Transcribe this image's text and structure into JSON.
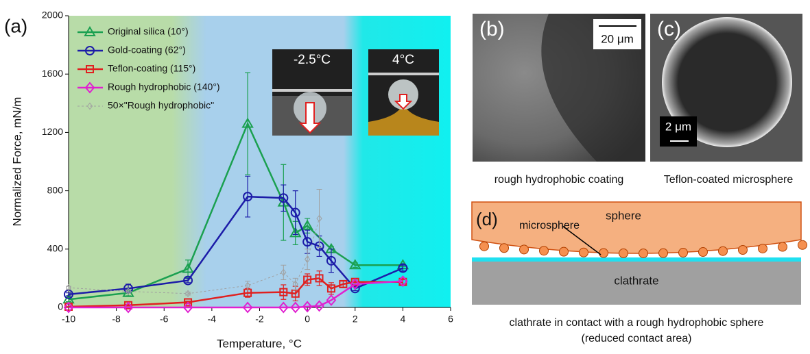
{
  "chart_data": {
    "type": "line",
    "panel_label": "(a)",
    "x_label": "Temperature, °C",
    "y_label": "Normalized Force, mN/m",
    "xlim": [
      -10,
      6
    ],
    "xticks": [
      -10,
      -8,
      -6,
      -4,
      -2,
      0,
      2,
      4,
      6
    ],
    "ylim": [
      0,
      2000
    ],
    "yticks": [
      0,
      400,
      800,
      1200,
      1600,
      2000
    ],
    "series": [
      {
        "name": "Original silica (10°)",
        "color": "#1aa050",
        "marker": "triangle",
        "x": [
          -10,
          -7.5,
          -5,
          -2.5,
          -1,
          -0.5,
          0,
          1,
          2,
          4
        ],
        "values": [
          55,
          100,
          265,
          1260,
          720,
          510,
          560,
          400,
          290,
          290
        ],
        "errors": [
          15,
          20,
          60,
          350,
          260,
          80,
          50,
          20,
          15,
          10
        ]
      },
      {
        "name": "Gold-coating (62°)",
        "color": "#1c1ca8",
        "marker": "circle",
        "x": [
          -10,
          -7.5,
          -5,
          -2.5,
          -1,
          -0.5,
          0,
          0.5,
          1,
          2,
          4
        ],
        "values": [
          90,
          130,
          185,
          760,
          750,
          650,
          450,
          420,
          320,
          130,
          270
        ],
        "errors": [
          10,
          30,
          15,
          140,
          90,
          150,
          80,
          70,
          80,
          15,
          20
        ]
      },
      {
        "name": "Teflon-coating (115°)",
        "color": "#e02020",
        "marker": "square",
        "x": [
          -10,
          -7.5,
          -5,
          -2.5,
          -1,
          -0.5,
          0,
          0.5,
          1,
          1.5,
          2,
          4
        ],
        "values": [
          5,
          15,
          35,
          100,
          105,
          95,
          190,
          200,
          130,
          160,
          175,
          175
        ],
        "errors": [
          3,
          5,
          8,
          30,
          50,
          50,
          40,
          50,
          40,
          20,
          20,
          15
        ]
      },
      {
        "name": "Rough hydrophobic (140°)",
        "color": "#e020d0",
        "marker": "diamond",
        "x": [
          -10,
          -7.5,
          -5,
          -2.5,
          -1,
          -0.5,
          0,
          0.5,
          1,
          2,
          4
        ],
        "values": [
          0,
          0,
          0,
          0,
          0,
          0,
          5,
          10,
          50,
          160,
          180
        ]
      },
      {
        "name": "50×\"Rough hydrophobic\"",
        "color": "#a0a0a0",
        "marker": "diamond-dash",
        "x": [
          -10,
          -7.5,
          -5,
          -2.5,
          -1,
          -0.5,
          0,
          0.5
        ],
        "values": [
          135,
          110,
          95,
          150,
          240,
          160,
          330,
          610
        ],
        "errors": [
          10,
          10,
          10,
          30,
          50,
          40,
          70,
          200
        ]
      }
    ],
    "insets": [
      "-2.5°C",
      "4°C"
    ]
  },
  "panels": {
    "b": {
      "label": "(b)",
      "scale": "20 μm",
      "caption": "rough hydrophobic coating"
    },
    "c": {
      "label": "(c)",
      "scale": "2 μm",
      "caption": "Teflon-coated microsphere"
    },
    "d": {
      "label": "(d)",
      "sphere": "sphere",
      "microsphere": "microsphere",
      "clathrate": "clathrate",
      "caption": [
        "clathrate in contact with a rough hydrophobic sphere",
        "(reduced contact area)"
      ]
    }
  }
}
